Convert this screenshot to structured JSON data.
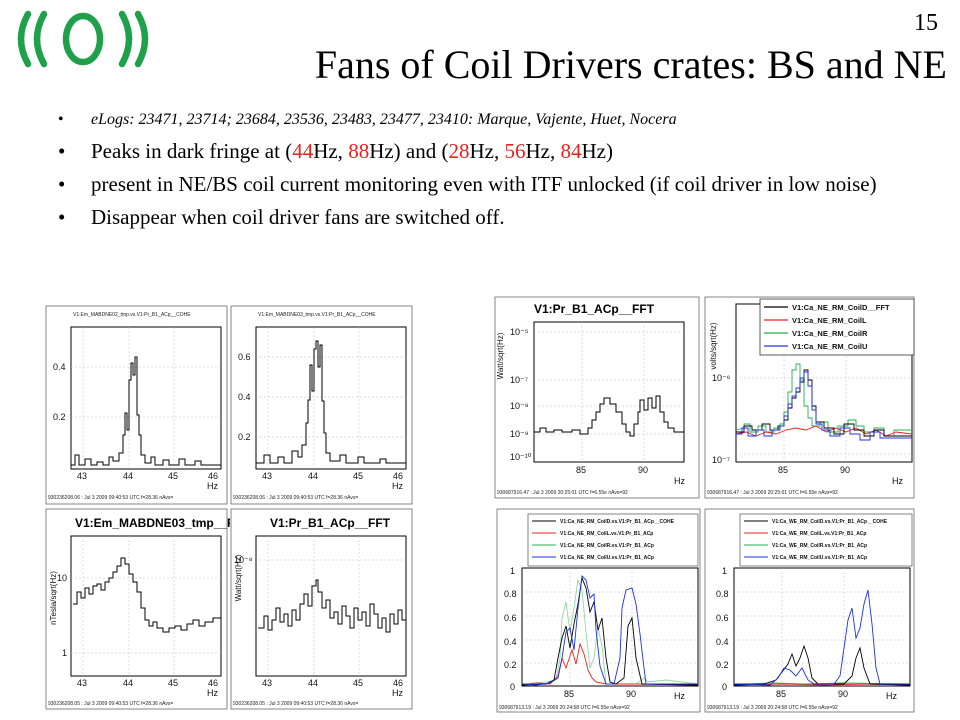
{
  "page_number": "15",
  "title": "Fans of Coil Drivers crates: BS and NE",
  "bullets": [
    {
      "style": "small",
      "segments": [
        {
          "text": "eLogs: 23471, 23714; 23684, 23536, 23483, 23477, 23410: Marque, Vajente, Huet, Nocera",
          "red": false
        }
      ]
    },
    {
      "style": "big",
      "segments": [
        {
          "text": "Peaks in dark fringe at (",
          "red": false
        },
        {
          "text": "44",
          "red": true
        },
        {
          "text": "Hz, ",
          "red": false
        },
        {
          "text": "88",
          "red": true
        },
        {
          "text": "Hz) and (",
          "red": false
        },
        {
          "text": "28",
          "red": true
        },
        {
          "text": "Hz, ",
          "red": false
        },
        {
          "text": "56",
          "red": true
        },
        {
          "text": "Hz, ",
          "red": false
        },
        {
          "text": "84",
          "red": true
        },
        {
          "text": "Hz)",
          "red": false
        }
      ]
    },
    {
      "style": "big",
      "segments": [
        {
          "text": "present in NE/BS coil current monitoring even with ITF unlocked (if coil driver in low noise)",
          "red": false
        }
      ]
    },
    {
      "style": "big",
      "segments": [
        {
          "text": "Disappear when coil driver fans are switched off.",
          "red": false
        }
      ]
    }
  ],
  "colors": {
    "red": "#e8231b",
    "black": "#000000",
    "green": "#20b050",
    "blue": "#2030e0",
    "light_green": "#90d8a0"
  },
  "panels": [
    {
      "id": "p1",
      "small_title": "V1:Em_MABDNE02_tmp.vs.V1:Pr_B1_ACp__COHE",
      "xticks": [
        "43",
        "44",
        "45",
        "46"
      ],
      "yticks": [
        "0.4",
        "0.2"
      ],
      "xunit": "Hz",
      "footer": "930236208.06 : Jul 3 2009 09:40:53 UTC  f=28.36 nAvs=",
      "chart_data": {
        "type": "line",
        "x": [
          42.9,
          43.5,
          43.9,
          44.05,
          44.2,
          44.6,
          45.2,
          46.0
        ],
        "y": [
          0.02,
          0.03,
          0.12,
          0.27,
          0.42,
          0.1,
          0.02,
          0.02
        ]
      }
    },
    {
      "id": "p2",
      "small_title": "V1:Em_MABDNE03_tmp.vs.V1:Pr_B1_ACp__COHE",
      "xticks": [
        "43",
        "44",
        "45",
        "46"
      ],
      "yticks": [
        "0.6",
        "0.4",
        "0.2"
      ],
      "xunit": "Hz",
      "footer": "930236208.06 : Jul 3 2009 09:40:53 UTC  f=28.36 nAvs=",
      "chart_data": {
        "type": "line",
        "x": [
          42.9,
          43.5,
          43.9,
          44.05,
          44.2,
          44.6,
          45.2,
          46.0
        ],
        "y": [
          0.03,
          0.05,
          0.25,
          0.55,
          0.68,
          0.15,
          0.03,
          0.03
        ]
      }
    },
    {
      "id": "p3",
      "title": "V1:Em_MABDNE03_tmp__FFT",
      "ylabel": "nTesla/sqrt(Hz)",
      "xticks": [
        "43",
        "44",
        "45",
        "46"
      ],
      "yticks": [
        "10",
        "1"
      ],
      "xunit": "Hz",
      "footer": "930236208.05 : Jul 3 2009 09:40:53 UTC  f=28.36 nAvs=",
      "chart_data": {
        "type": "line",
        "x": [
          42.9,
          43.5,
          44.0,
          44.3,
          44.6,
          45.0,
          46.0
        ],
        "y": [
          3,
          6,
          15,
          8,
          4,
          2,
          2
        ]
      }
    },
    {
      "id": "p4",
      "title": "V1:Pr_B1_ACp__FFT",
      "ylabel": "Watt/sqrt(Hz)",
      "xticks": [
        "43",
        "44",
        "45",
        "46"
      ],
      "yticks": [
        "10⁻⁸"
      ],
      "xunit": "Hz",
      "footer": "930236208.05 : Jul 3 2009 09:40:53 UTC  f=28.36 nAvs=",
      "chart_data": {
        "type": "line",
        "x": [
          42.9,
          43.6,
          44.0,
          44.3,
          45.0,
          46.0
        ],
        "y": [
          0.4,
          0.6,
          0.8,
          0.5,
          0.5,
          0.4
        ]
      }
    },
    {
      "id": "p5",
      "title": "V1:Pr_B1_ACp__FFT",
      "ylabel": "Watt/sqrt(Hz)",
      "xticks": [
        "85",
        "90"
      ],
      "yticks": [
        "10⁻⁵",
        "10⁻⁷",
        "10⁻⁸",
        "10⁻⁹",
        "10⁻¹⁰"
      ],
      "xunit": "Hz",
      "footer": "930687916.47 : Jul 3 2009 20:25:01 UTC  f=6.55e nAvs=92",
      "chart_data": {
        "type": "line",
        "x": [
          83,
          85,
          86.5,
          88,
          89,
          90,
          91,
          93
        ],
        "y": [
          1e-09,
          1e-09,
          1e-09,
          2e-08,
          1e-08,
          2e-08,
          3e-09,
          1e-09
        ]
      }
    },
    {
      "id": "p6",
      "ylabel": "volts/sqrt(Hz)",
      "xticks": [
        "85",
        "90"
      ],
      "yticks": [
        "10⁻⁶",
        "10⁻⁷"
      ],
      "xunit": "Hz",
      "footer": "930687916.47 : Jul 3 2009 20:25:01 UTC  f=6.55e nAvs=92",
      "legend": [
        "V1:Ca_NE_RM_CoilD__FFT",
        "V1:Ca_NE_RM_CoilL",
        "V1:Ca_NE_RM_CoilR",
        "V1:Ca_NE_RM_CoilU"
      ],
      "chart_data": {
        "type": "line",
        "series": [
          {
            "name": "V1:Ca_NE_RM_CoilD__FFT",
            "x": [
              83,
              86,
              87.5,
              88.5,
              90,
              93
            ],
            "y": [
              2e-07,
              2e-07,
              4e-07,
              8e-07,
              2e-07,
              2e-07
            ]
          },
          {
            "name": "V1:Ca_NE_RM_CoilL",
            "x": [
              83,
              86,
              88,
              90,
              93
            ],
            "y": [
              1.5e-07,
              1.5e-07,
              2e-07,
              1.5e-07,
              1.5e-07
            ]
          },
          {
            "name": "V1:Ca_NE_RM_CoilR",
            "x": [
              83,
              86,
              87.5,
              88.5,
              90,
              93
            ],
            "y": [
              2e-07,
              2e-07,
              1e-06,
              4e-07,
              2e-07,
              2e-07
            ]
          },
          {
            "name": "V1:Ca_NE_RM_CoilU",
            "x": [
              83,
              86,
              87.5,
              88.5,
              90,
              93
            ],
            "y": [
              2e-07,
              2e-07,
              5e-07,
              9e-07,
              2e-07,
              2e-07
            ]
          }
        ]
      }
    },
    {
      "id": "p7",
      "legend": [
        "V1:Ca_NE_RM_CoilD.vs.V1:Pr_B1_ACp__COHE",
        "V1:Ca_NE_RM_CoilL.vs.V1:Pr_B1_ACp",
        "V1:Ca_NE_RM_CoilR.vs.V1:Pr_B1_ACp",
        "V1:Ca_NE_RM_CoilU.vs.V1:Pr_B1_ACp"
      ],
      "xticks": [
        "85",
        "90"
      ],
      "yticks": [
        "1",
        "0.8",
        "0.6",
        "0.4",
        "0.2",
        "0"
      ],
      "xunit": "Hz",
      "footer": "930687913.19 : Jul 3 2009 20:24:58 UTC  f=6.55e nAvs=92",
      "chart_data": {
        "type": "line",
        "ylim": [
          0,
          1
        ],
        "series": [
          {
            "name": "V1:Ca_NE_RM_CoilD.vs.V1:Pr_B1_ACp__COHE",
            "x": [
              83,
              86,
              87,
              88,
              88.5,
              89,
              90,
              91,
              93
            ],
            "y": [
              0.05,
              0.1,
              0.4,
              0.9,
              0.7,
              0.3,
              0.6,
              0.1,
              0.05
            ]
          },
          {
            "name": "V1:Ca_NE_RM_CoilL.vs.V1:Pr_B1_ACp",
            "x": [
              83,
              86,
              87,
              88,
              89,
              90,
              93
            ],
            "y": [
              0.02,
              0.05,
              0.3,
              0.25,
              0.1,
              0.05,
              0.02
            ]
          },
          {
            "name": "V1:Ca_NE_RM_CoilR.vs.V1:Pr_B1_ACp",
            "x": [
              83,
              86,
              87,
              88,
              89,
              90,
              93
            ],
            "y": [
              0.05,
              0.15,
              0.8,
              0.6,
              0.3,
              0.1,
              0.05
            ]
          },
          {
            "name": "V1:Ca_NE_RM_CoilU.vs.V1:Pr_B1_ACp",
            "x": [
              83,
              86,
              87,
              88,
              88.5,
              89,
              90,
              91,
              93
            ],
            "y": [
              0.05,
              0.2,
              0.7,
              0.95,
              0.8,
              0.5,
              0.9,
              0.2,
              0.05
            ]
          }
        ]
      }
    },
    {
      "id": "p8",
      "legend": [
        "V1:Ca_WE_RM_CoilD.vs.V1:Pr_B1_ACp__COHE",
        "V1:Ca_WE_RM_CoilL.vs.V1:Pr_B1_ACp",
        "V1:Ca_WE_RM_CoilR.vs.V1:Pr_B1_ACp",
        "V1:Ca_WE_RM_CoilU.vs.V1:Pr_B1_ACp"
      ],
      "xticks": [
        "85",
        "90"
      ],
      "yticks": [
        "1",
        "0.8",
        "0.6",
        "0.4",
        "0.2",
        "0"
      ],
      "xunit": "Hz",
      "footer": "930687913.19 : Jul 3 2009 20:24:58 UTC  f=6.55e nAvs=92",
      "chart_data": {
        "type": "line",
        "ylim": [
          0,
          1
        ],
        "series": [
          {
            "name": "V1:Ca_WE_RM_CoilD.vs.V1:Pr_B1_ACp__COHE",
            "x": [
              83,
              86,
              87.5,
              88.5,
              89,
              90,
              93
            ],
            "y": [
              0.05,
              0.1,
              0.3,
              0.3,
              0.1,
              0.2,
              0.05
            ]
          },
          {
            "name": "V1:Ca_WE_RM_CoilL.vs.V1:Pr_B1_ACp",
            "x": [
              83,
              86,
              88,
              90,
              93
            ],
            "y": [
              0.02,
              0.03,
              0.05,
              0.03,
              0.02
            ]
          },
          {
            "name": "V1:Ca_WE_RM_CoilR.vs.V1:Pr_B1_ACp",
            "x": [
              83,
              86,
              88,
              90,
              93
            ],
            "y": [
              0.03,
              0.05,
              0.1,
              0.05,
              0.03
            ]
          },
          {
            "name": "V1:Ca_WE_RM_CoilU.vs.V1:Pr_B1_ACp",
            "x": [
              83,
              86,
              87.5,
              88.5,
              89,
              90,
              91,
              93
            ],
            "y": [
              0.05,
              0.1,
              0.2,
              0.1,
              0.4,
              0.8,
              0.2,
              0.05
            ]
          }
        ]
      }
    }
  ]
}
